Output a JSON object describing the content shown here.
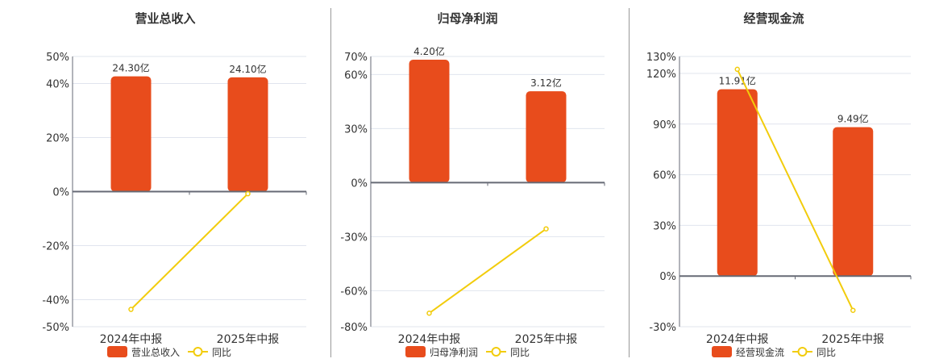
{
  "colors": {
    "bar": "#e84c1c",
    "line": "#f2cc0c",
    "grid": "#e0e4ee",
    "axis": "#666a75",
    "text": "#333333"
  },
  "chart_data": [
    {
      "type": "bar+line",
      "title": "营业总收入",
      "categories": [
        "2024年中报",
        "2025年中报"
      ],
      "series": [
        {
          "name": "营业总收入",
          "type": "bar",
          "values": [
            24.3,
            24.1
          ],
          "labels": [
            "24.30亿",
            "24.10亿"
          ]
        },
        {
          "name": "同比",
          "type": "line",
          "values": [
            -43.6,
            -0.8
          ]
        }
      ],
      "yticks": [
        50,
        40,
        20,
        0,
        -20,
        -40,
        -50
      ],
      "ytick_labels": [
        "50%",
        "40%",
        "20%",
        "0%",
        "-20%",
        "-40%",
        "-50%"
      ],
      "ylim": [
        -50,
        50
      ],
      "grid": true,
      "legend": "bottom"
    },
    {
      "type": "bar+line",
      "title": "归母净利润",
      "categories": [
        "2024年中报",
        "2025年中报"
      ],
      "series": [
        {
          "name": "归母净利润",
          "type": "bar",
          "values": [
            4.2,
            3.12
          ],
          "labels": [
            "4.20亿",
            "3.12亿"
          ]
        },
        {
          "name": "同比",
          "type": "line",
          "values": [
            -72.5,
            -25.7
          ]
        }
      ],
      "yticks": [
        70,
        60,
        30,
        0,
        -30,
        -60,
        -80
      ],
      "ytick_labels": [
        "70%",
        "60%",
        "30%",
        "0%",
        "-30%",
        "-60%",
        "-80%"
      ],
      "ylim": [
        -80,
        70
      ],
      "grid": true,
      "legend": "bottom"
    },
    {
      "type": "bar+line",
      "title": "经营现金流",
      "categories": [
        "2024年中报",
        "2025年中报"
      ],
      "series": [
        {
          "name": "经营现金流",
          "type": "bar",
          "values": [
            11.91,
            9.49
          ],
          "labels": [
            "11.91亿",
            "9.49亿"
          ]
        },
        {
          "name": "同比",
          "type": "line",
          "values": [
            122.4,
            -20.3
          ]
        }
      ],
      "yticks": [
        130,
        120,
        90,
        60,
        30,
        0,
        -30
      ],
      "ytick_labels": [
        "130%",
        "120%",
        "90%",
        "60%",
        "30%",
        "0%",
        "-30%"
      ],
      "ylim": [
        -30,
        130
      ],
      "grid": true,
      "legend": "bottom"
    }
  ]
}
